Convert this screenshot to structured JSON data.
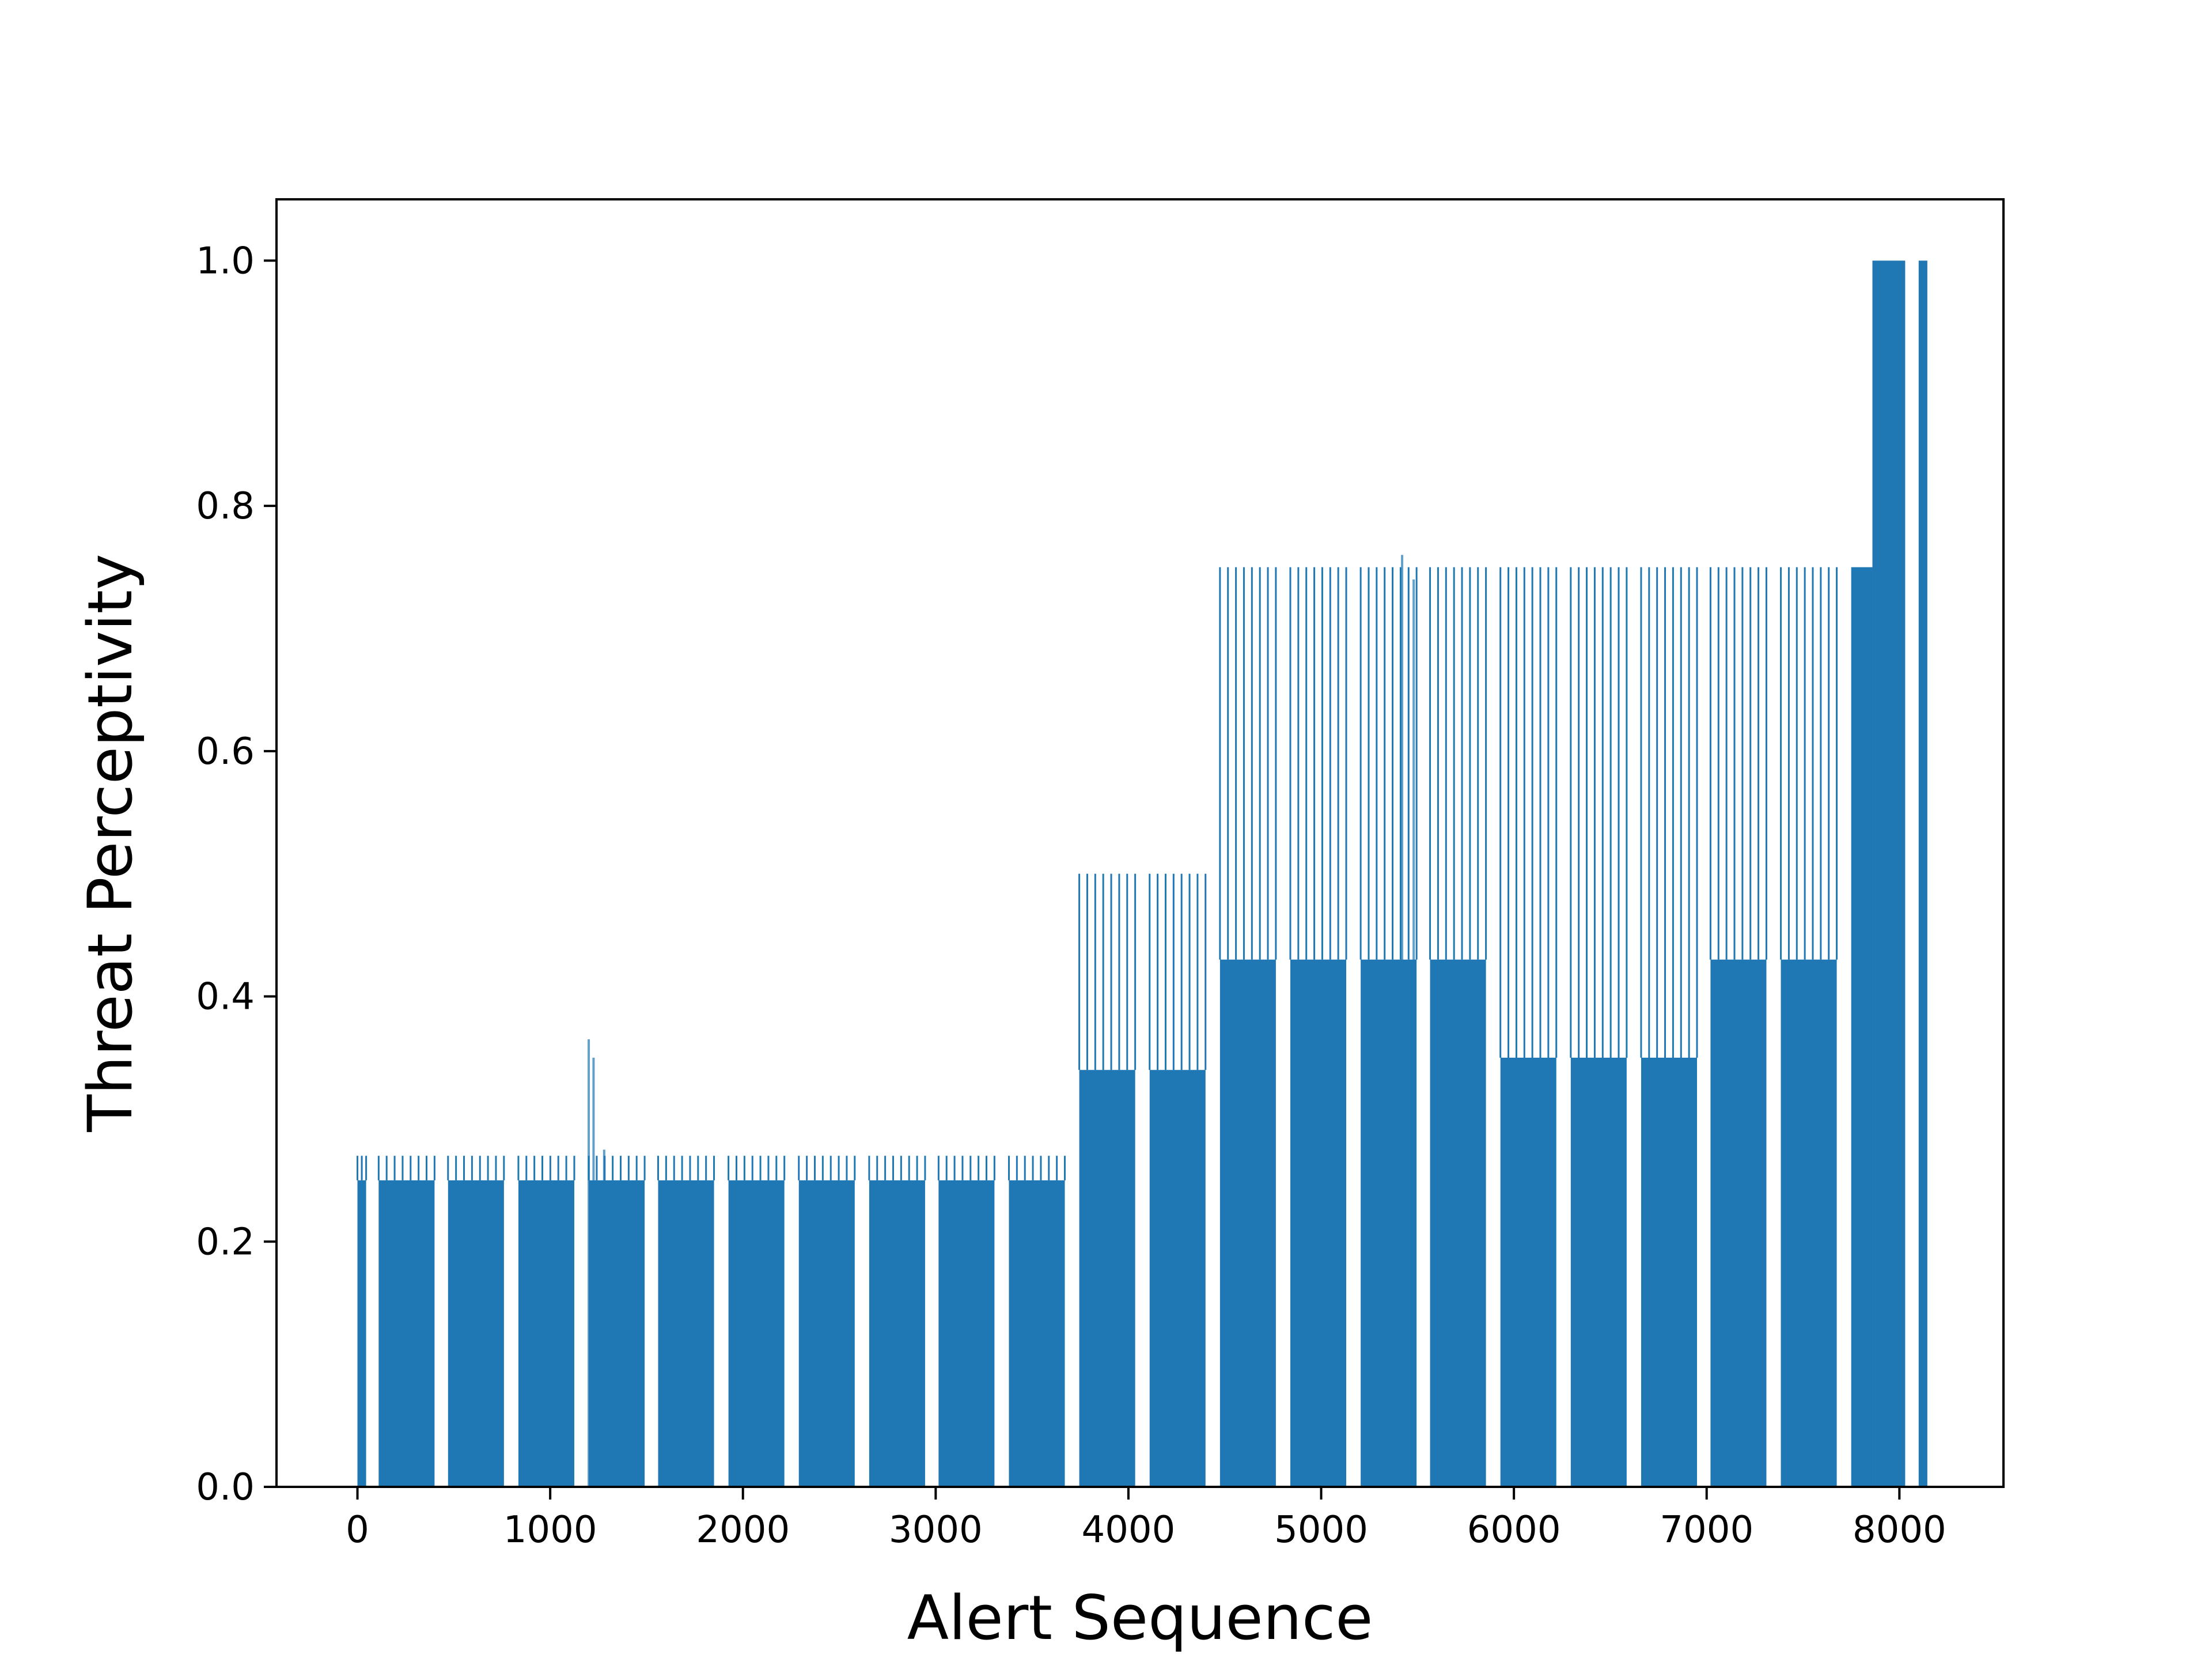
{
  "chart_data": {
    "type": "bar",
    "title": "",
    "xlabel": "Alert Sequence",
    "ylabel": "Threat Perceptivity",
    "xlim": [
      -420,
      8540
    ],
    "ylim": [
      0.0,
      1.05
    ],
    "x_ticks": [
      0,
      1000,
      2000,
      3000,
      4000,
      5000,
      6000,
      7000,
      8000
    ],
    "x_tick_labels": [
      "0",
      "1000",
      "2000",
      "3000",
      "4000",
      "5000",
      "6000",
      "7000",
      "8000"
    ],
    "y_ticks": [
      0.0,
      0.2,
      0.4,
      0.6,
      0.8,
      1.0
    ],
    "y_tick_labels": [
      "0.0",
      "0.2",
      "0.4",
      "0.6",
      "0.8",
      "1.0"
    ],
    "grid": false,
    "legend": "none",
    "bar_color": "#1f77b4",
    "bar_groups": [
      {
        "x_start": 0,
        "x_end": 45,
        "value": 0.25,
        "spike_value": 0.27
      },
      {
        "x_start": 110,
        "x_end": 400,
        "value": 0.25,
        "spike_value": 0.27
      },
      {
        "x_start": 470,
        "x_end": 760,
        "value": 0.25,
        "spike_value": 0.27
      },
      {
        "x_start": 835,
        "x_end": 1125,
        "value": 0.25,
        "spike_value": 0.27
      },
      {
        "x_start": 1200,
        "x_end": 1490,
        "value": 0.25,
        "spike_value": 0.27
      },
      {
        "x_start": 1560,
        "x_end": 1850,
        "value": 0.25,
        "spike_value": 0.27
      },
      {
        "x_start": 1925,
        "x_end": 2215,
        "value": 0.25,
        "spike_value": 0.27
      },
      {
        "x_start": 2290,
        "x_end": 2580,
        "value": 0.25,
        "spike_value": 0.27
      },
      {
        "x_start": 2655,
        "x_end": 2945,
        "value": 0.25,
        "spike_value": 0.27
      },
      {
        "x_start": 3015,
        "x_end": 3305,
        "value": 0.25,
        "spike_value": 0.27
      },
      {
        "x_start": 3380,
        "x_end": 3670,
        "value": 0.25,
        "spike_value": 0.27
      },
      {
        "x_start": 3745,
        "x_end": 4035,
        "value": 0.34,
        "spike_value": 0.5
      },
      {
        "x_start": 4110,
        "x_end": 4400,
        "value": 0.34,
        "spike_value": 0.5
      },
      {
        "x_start": 4475,
        "x_end": 4765,
        "value": 0.43,
        "spike_value": 0.75
      },
      {
        "x_start": 4840,
        "x_end": 5130,
        "value": 0.43,
        "spike_value": 0.75
      },
      {
        "x_start": 5205,
        "x_end": 5495,
        "value": 0.43,
        "spike_value": 0.75
      },
      {
        "x_start": 5565,
        "x_end": 5855,
        "value": 0.43,
        "spike_value": 0.75
      },
      {
        "x_start": 5930,
        "x_end": 6220,
        "value": 0.35,
        "spike_value": 0.75
      },
      {
        "x_start": 6295,
        "x_end": 6585,
        "value": 0.35,
        "spike_value": 0.75
      },
      {
        "x_start": 6660,
        "x_end": 6950,
        "value": 0.35,
        "spike_value": 0.75
      },
      {
        "x_start": 7020,
        "x_end": 7310,
        "value": 0.43,
        "spike_value": 0.75
      },
      {
        "x_start": 7385,
        "x_end": 7675,
        "value": 0.43,
        "spike_value": 0.75
      },
      {
        "x_start": 7750,
        "x_end": 7860,
        "value": 0.75,
        "spike_value": 0.75
      },
      {
        "x_start": 7860,
        "x_end": 8030,
        "value": 1.0,
        "spike_value": 1.0
      },
      {
        "x_start": 8100,
        "x_end": 8145,
        "value": 1.0,
        "spike_value": 1.0
      }
    ],
    "outlier_spikes": [
      {
        "x": 1200,
        "value": 0.365
      },
      {
        "x": 1225,
        "value": 0.35
      },
      {
        "x": 1280,
        "value": 0.275
      },
      {
        "x": 5420,
        "value": 0.76
      },
      {
        "x": 5480,
        "value": 0.74
      }
    ]
  }
}
